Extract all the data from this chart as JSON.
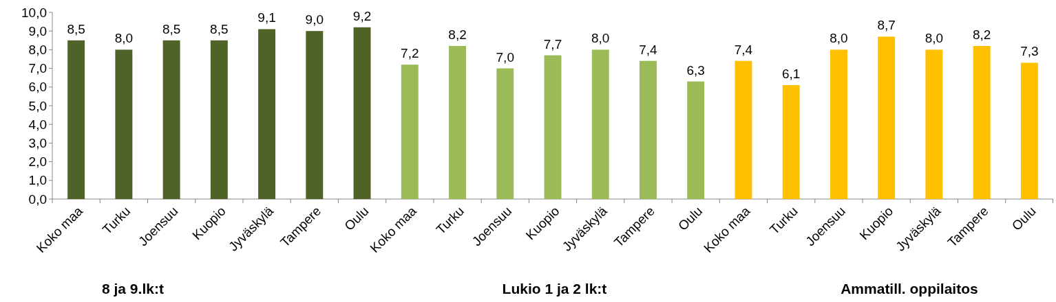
{
  "chart_data": {
    "type": "bar",
    "categories": [
      "Koko maa",
      "Turku",
      "Joensuu",
      "Kuopio",
      "Jyväskylä",
      "Tampere",
      "Oulu",
      "Koko maa",
      "Turku",
      "Joensuu",
      "Kuopio",
      "Jyväskylä",
      "Tampere",
      "Oulu",
      "Koko maa",
      "Turku",
      "Joensuu",
      "Kuopio",
      "Jyväskylä",
      "Tampere",
      "Oulu"
    ],
    "values": [
      8.5,
      8.0,
      8.5,
      8.5,
      9.1,
      9.0,
      9.2,
      7.2,
      8.2,
      7.0,
      7.7,
      8.0,
      7.4,
      6.3,
      7.4,
      6.1,
      8.0,
      8.7,
      8.0,
      8.2,
      7.3
    ],
    "colors": [
      "#4f6228",
      "#4f6228",
      "#4f6228",
      "#4f6228",
      "#4f6228",
      "#4f6228",
      "#4f6228",
      "#9bbb59",
      "#9bbb59",
      "#9bbb59",
      "#9bbb59",
      "#9bbb59",
      "#9bbb59",
      "#9bbb59",
      "#ffc000",
      "#ffc000",
      "#ffc000",
      "#ffc000",
      "#ffc000",
      "#ffc000",
      "#ffc000"
    ],
    "value_labels": [
      "8,5",
      "8,0",
      "8,5",
      "8,5",
      "9,1",
      "9,0",
      "9,2",
      "7,2",
      "8,2",
      "7,0",
      "7,7",
      "8,0",
      "7,4",
      "6,3",
      "7,4",
      "6,1",
      "8,0",
      "8,7",
      "8,0",
      "8,2",
      "7,3"
    ],
    "ylim": [
      0,
      10
    ],
    "yticks": [
      {
        "value": 0,
        "label": "0,0"
      },
      {
        "value": 1,
        "label": "1,0"
      },
      {
        "value": 2,
        "label": "2,0"
      },
      {
        "value": 3,
        "label": "3,0"
      },
      {
        "value": 4,
        "label": "4,0"
      },
      {
        "value": 5,
        "label": "5,0"
      },
      {
        "value": 6,
        "label": "6,0"
      },
      {
        "value": 7,
        "label": "7,0"
      },
      {
        "value": 8,
        "label": "8,0"
      },
      {
        "value": 9,
        "label": "9,0"
      },
      {
        "value": 10,
        "label": "10,0"
      }
    ],
    "annotations": [
      "8 ja 9.lk:t",
      "Lukio 1 ja 2 lk:t",
      "Ammatill. oppilaitos"
    ]
  }
}
